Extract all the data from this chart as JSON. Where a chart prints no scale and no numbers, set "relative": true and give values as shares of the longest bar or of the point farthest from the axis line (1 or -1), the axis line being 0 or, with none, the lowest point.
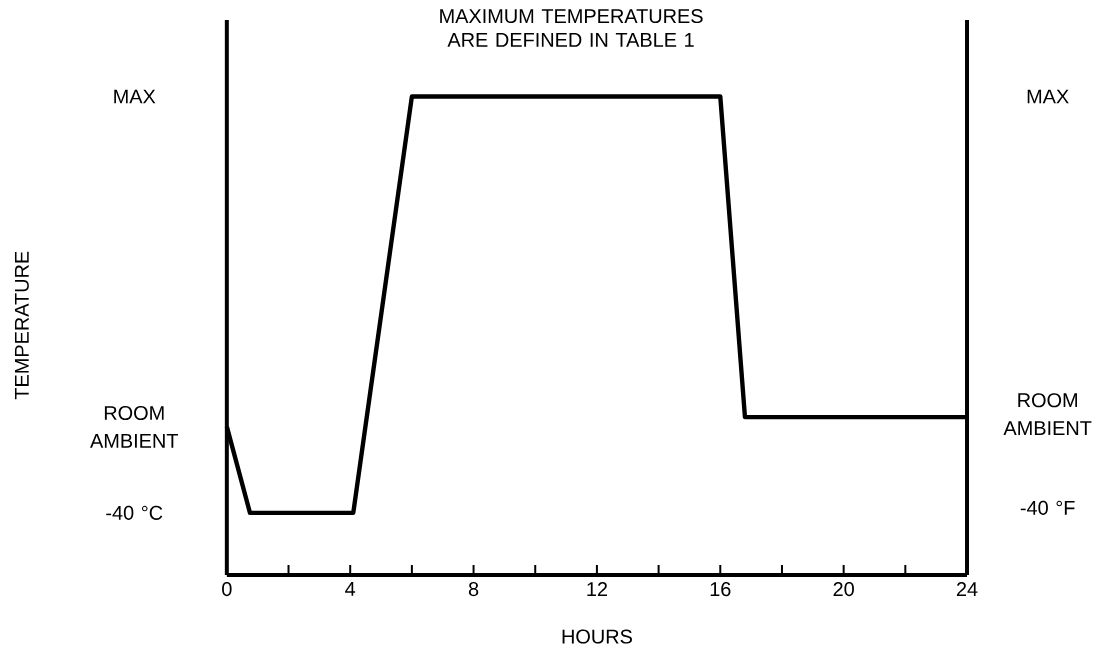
{
  "chart_data": {
    "type": "line",
    "title": "MAXIMUM TEMPERATURES ARE DEFINED IN TABLE 1",
    "xlabel": "HOURS",
    "relative": true,
    "x": [
      0,
      0.75,
      4.1,
      6,
      16,
      16.8,
      24
    ],
    "series": [
      {
        "color": "#000000",
        "values": [
          0.31,
          0.13,
          0.13,
          1,
          1,
          0.33,
          0.33
        ]
      }
    ],
    "xlim": [
      0,
      24
    ],
    "xticks": [
      0,
      {
        "value": 2,
        "label": null
      },
      4,
      {
        "value": 6,
        "label": null
      },
      8,
      {
        "value": 10,
        "label": null
      },
      12,
      {
        "value": 14,
        "label": null
      },
      16,
      {
        "value": 18,
        "label": null
      },
      20,
      {
        "value": 22,
        "label": null
      },
      24
    ],
    "annotations": [
      "MAX",
      "ROOM AMBIENT",
      "-40 °C",
      "MAX",
      "ROOM AMBIENT",
      "-40 °F",
      "TEMPERATURE"
    ],
    "grid": false,
    "marker": "none",
    "line_style": "solid"
  }
}
